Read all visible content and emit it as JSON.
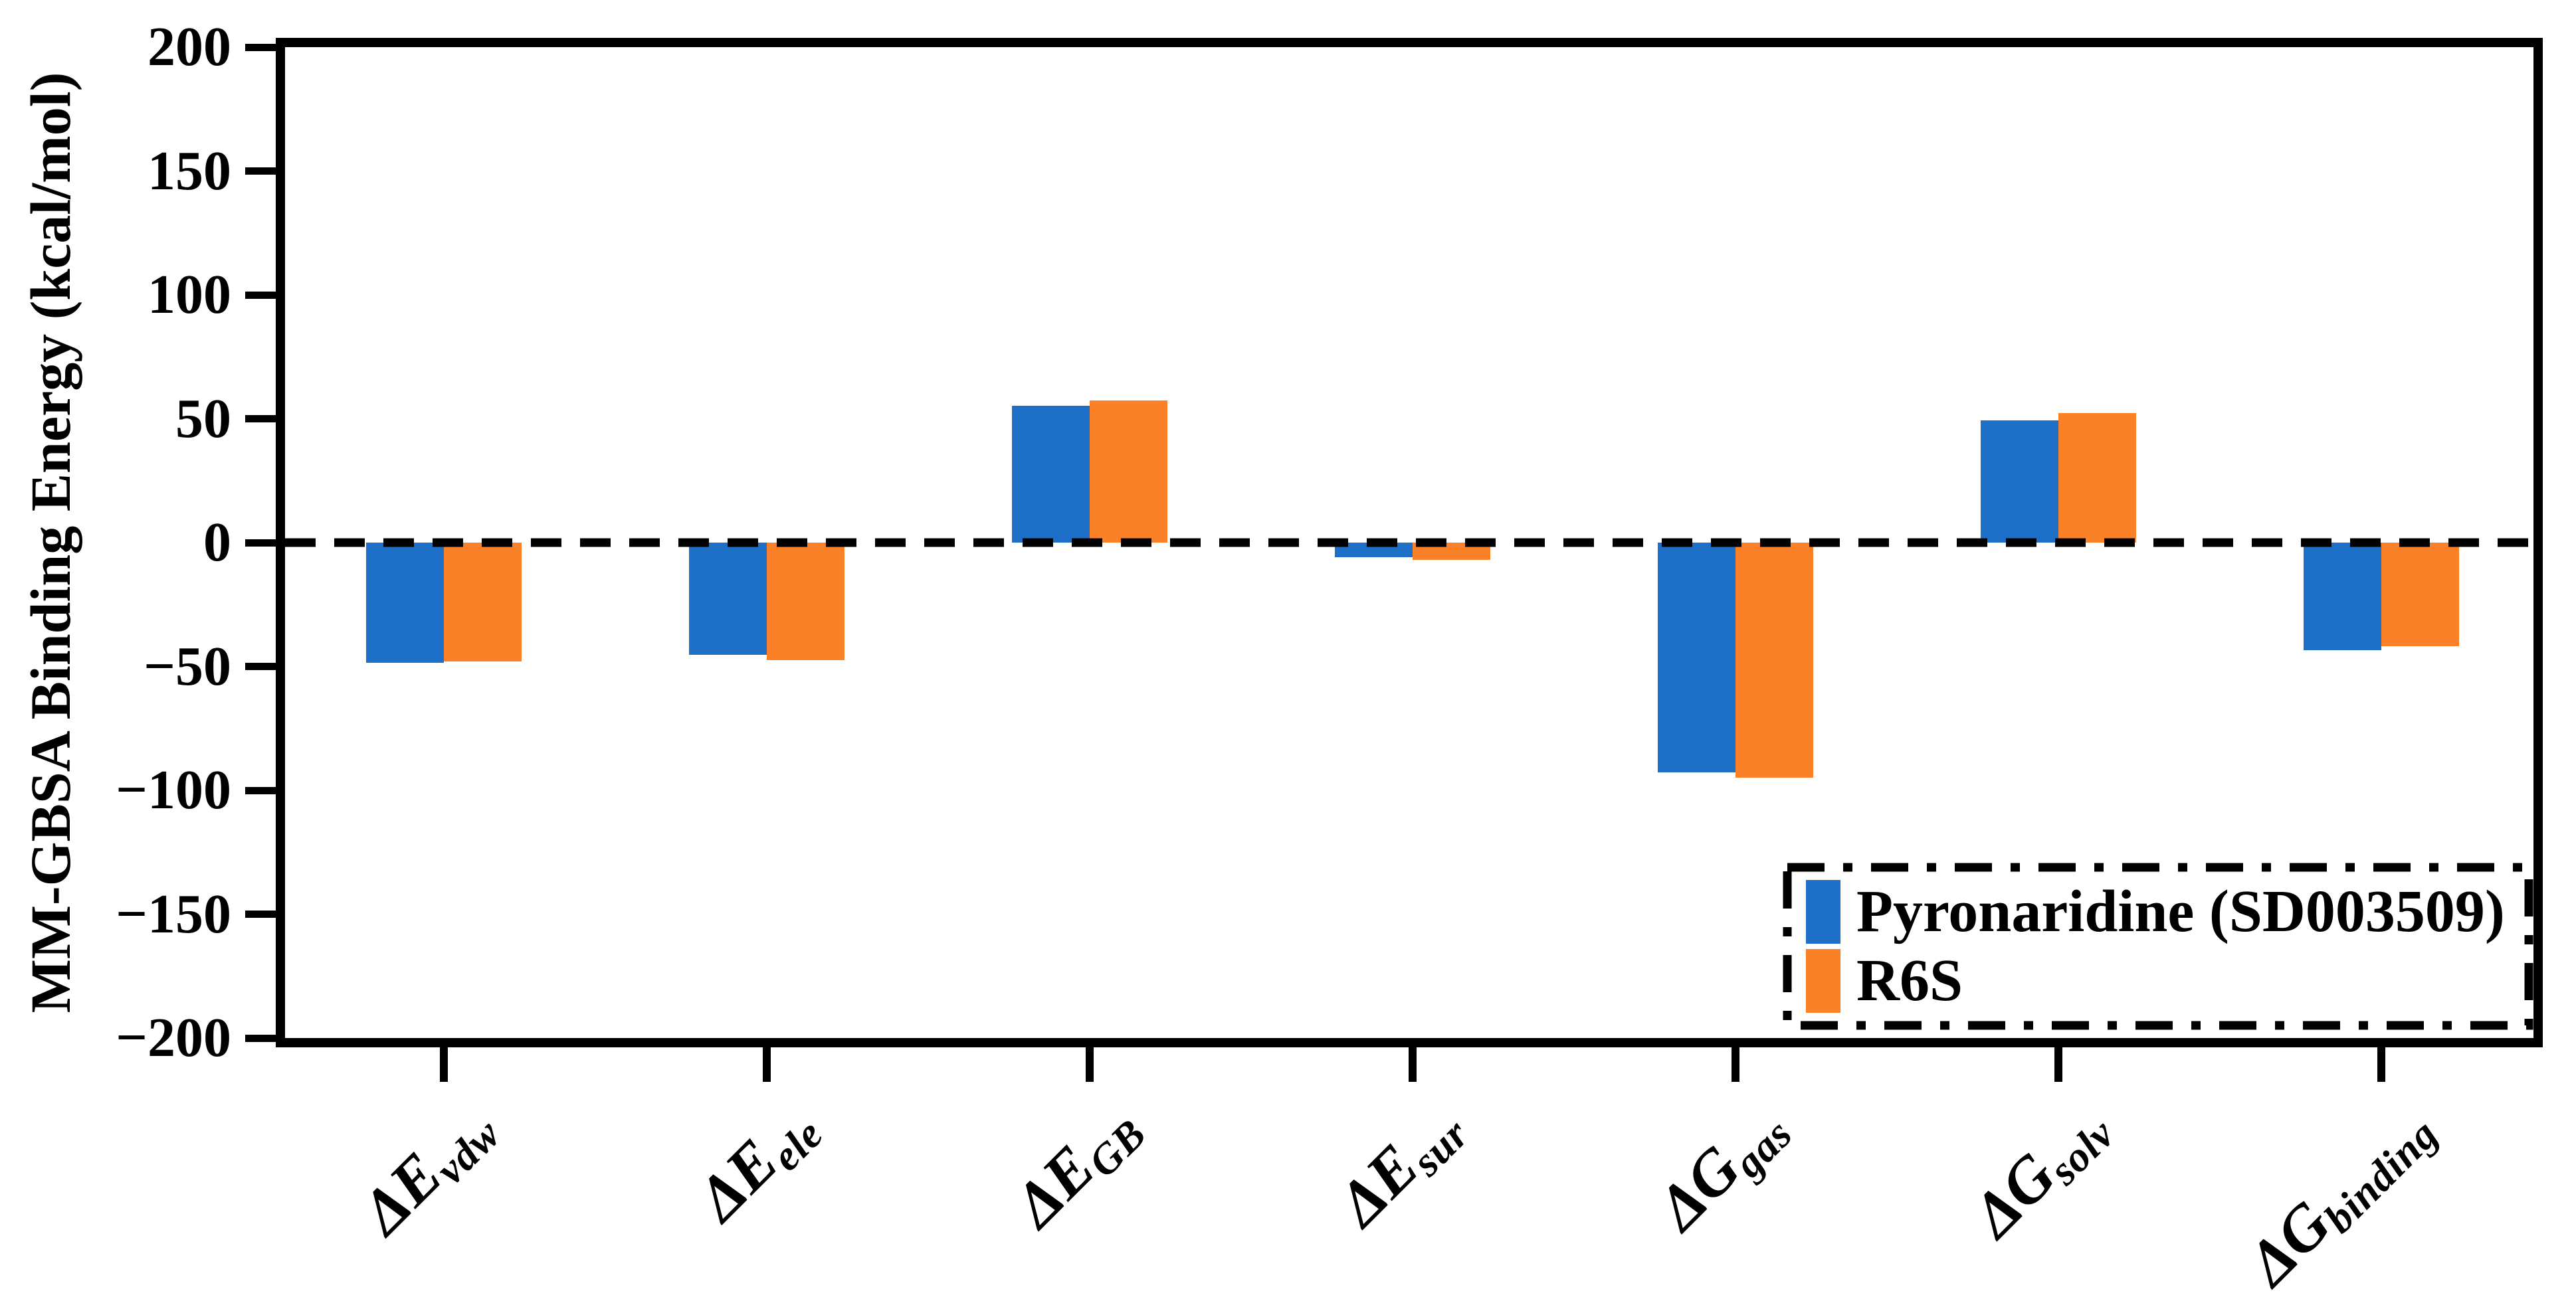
{
  "chart_data": {
    "type": "bar",
    "title": "",
    "xlabel": "",
    "ylabel": "MM-GBSA Binding Energy (kcal/mol)",
    "ylim": [
      -200,
      200
    ],
    "ytick_step": 50,
    "ytick_labels": [
      "200",
      "150",
      "100",
      "50",
      "0",
      "−50",
      "−100",
      "−150",
      "−200"
    ],
    "grid": false,
    "zero_line": "dashed",
    "legend_position": "lower right",
    "categories": [
      "ΔEvdw",
      "ΔEele",
      "ΔEGB",
      "ΔEsur",
      "ΔGgas",
      "ΔGsolv",
      "ΔGbinding"
    ],
    "categories_rich": [
      {
        "base": "ΔE",
        "sub": "vdw"
      },
      {
        "base": "ΔE",
        "sub": "ele"
      },
      {
        "base": "ΔE",
        "sub": "GB"
      },
      {
        "base": "ΔE",
        "sub": "sur"
      },
      {
        "base": "ΔG",
        "sub": "gas"
      },
      {
        "base": "ΔG",
        "sub": "solv"
      },
      {
        "base": "ΔG",
        "sub": "binding"
      }
    ],
    "series": [
      {
        "name": "Pyronaridine (SD003509)",
        "color": "#1E6FC8",
        "values": [
          -48.4,
          -45.3,
          55.2,
          -6.0,
          -92.8,
          49.4,
          -43.5
        ]
      },
      {
        "name": "R6S",
        "color": "#FB8128",
        "values": [
          -47.9,
          -47.5,
          57.5,
          -6.9,
          -95.0,
          52.4,
          -41.9
        ]
      }
    ],
    "axis_color": "#000000",
    "background_color": "#ffffff"
  }
}
